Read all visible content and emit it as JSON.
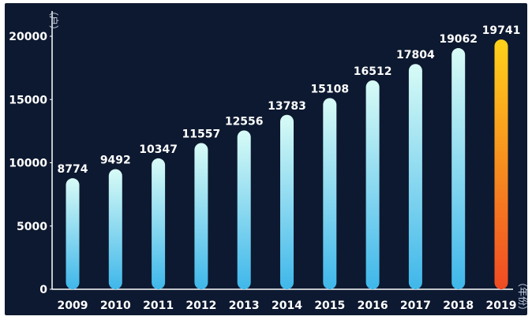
{
  "chart_data": {
    "type": "bar",
    "categories": [
      "2009",
      "2010",
      "2011",
      "2012",
      "2013",
      "2014",
      "2015",
      "2016",
      "2017",
      "2018",
      "2019"
    ],
    "values": [
      8774,
      9492,
      10347,
      11557,
      12556,
      13783,
      15108,
      16512,
      17804,
      19062,
      19741
    ],
    "data_labels": [
      "8774",
      "9492",
      "10347",
      "11557",
      "12556",
      "13783",
      "15108",
      "16512",
      "17804",
      "19062",
      "19741"
    ],
    "ylabel": "（户）",
    "xlabel": "（年份）",
    "ylim": [
      0,
      20000
    ],
    "yticks": [
      "0",
      "5000",
      "10000",
      "15000",
      "20000"
    ],
    "grid": false,
    "highlight_category": "2019",
    "colors": {
      "background": "#0d1930",
      "bar_top": "#d8fbf6",
      "bar_bottom": "#3fb7ea",
      "highlight_top": "#ffd21a",
      "highlight_bottom": "#f04a23",
      "highlight_label": "#4fa8e8",
      "axis": "#ffffff"
    }
  }
}
